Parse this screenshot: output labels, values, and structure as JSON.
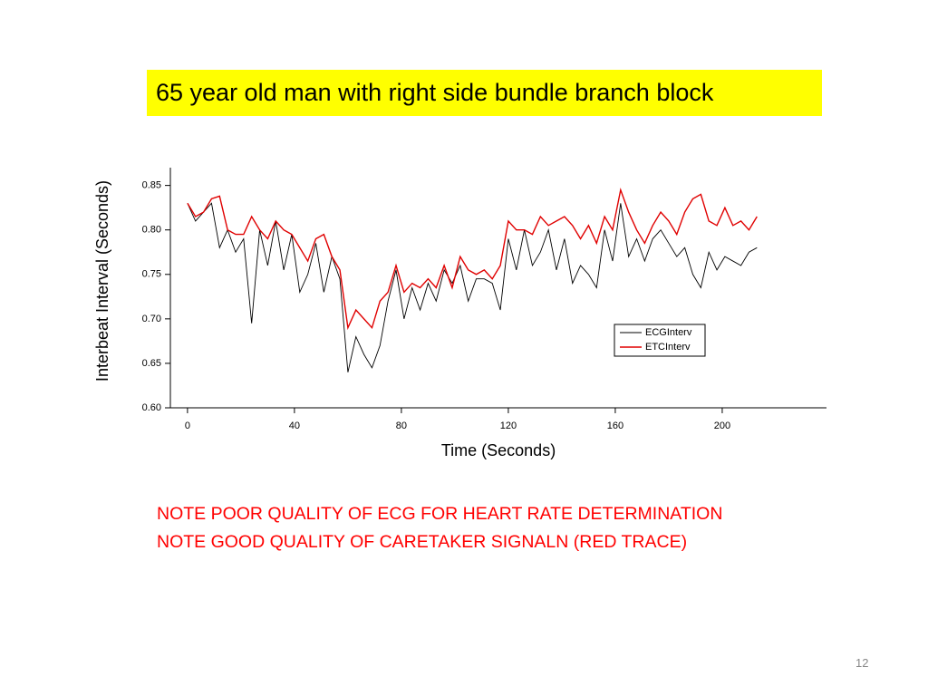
{
  "title": "65 year old man with right side bundle branch block",
  "notes": [
    "NOTE POOR QUALITY OF ECG FOR HEART RATE DETERMINATION",
    "NOTE GOOD QUALITY OF CARETAKER SIGNALN (RED TRACE)"
  ],
  "page_number": "12",
  "chart_data": {
    "type": "line",
    "x_label": "Time (Seconds)",
    "y_label": "Interbeat Interval (Seconds)",
    "xlim": [
      -6.4,
      239
    ],
    "ylim": [
      0.6,
      0.87
    ],
    "xticks": [
      0,
      40,
      80,
      120,
      160,
      200
    ],
    "yticks": [
      {
        "value": 0.6,
        "label": "0.60"
      },
      0.65,
      {
        "value": 0.7,
        "label": "0.70"
      },
      0.75,
      {
        "value": 0.8,
        "label": "0.80"
      },
      0.85
    ],
    "legend_position": "right",
    "x": [
      0,
      3,
      6,
      9,
      12,
      15,
      18,
      21,
      24,
      27,
      30,
      33,
      36,
      39,
      42,
      45,
      48,
      51,
      54,
      57,
      60,
      63,
      66,
      69,
      72,
      75,
      78,
      81,
      84,
      87,
      90,
      93,
      96,
      99,
      102,
      105,
      108,
      111,
      114,
      117,
      120,
      123,
      126,
      129,
      132,
      135,
      138,
      141,
      144,
      147,
      150,
      153,
      156,
      159,
      162,
      165,
      168,
      171,
      174,
      177,
      180,
      183,
      186,
      189,
      192,
      195,
      198,
      201,
      204,
      207,
      210,
      213
    ],
    "series": [
      {
        "name": "ECGInterv",
        "color": "#000000",
        "values": [
          0.83,
          0.81,
          0.82,
          0.83,
          0.78,
          0.8,
          0.775,
          0.79,
          0.695,
          0.8,
          0.76,
          0.81,
          0.755,
          0.795,
          0.73,
          0.75,
          0.785,
          0.73,
          0.77,
          0.745,
          0.64,
          0.68,
          0.66,
          0.645,
          0.67,
          0.72,
          0.755,
          0.7,
          0.735,
          0.71,
          0.74,
          0.72,
          0.755,
          0.74,
          0.76,
          0.72,
          0.745,
          0.745,
          0.74,
          0.71,
          0.79,
          0.755,
          0.8,
          0.76,
          0.775,
          0.8,
          0.755,
          0.79,
          0.74,
          0.76,
          0.75,
          0.735,
          0.8,
          0.765,
          0.83,
          0.77,
          0.79,
          0.765,
          0.79,
          0.8,
          0.785,
          0.77,
          0.78,
          0.75,
          0.735,
          0.775,
          0.755,
          0.77,
          0.765,
          0.76,
          0.775,
          0.78
        ]
      },
      {
        "name": "ETCInterv",
        "color": "#e00000",
        "values": [
          0.83,
          0.815,
          0.82,
          0.835,
          0.838,
          0.8,
          0.795,
          0.795,
          0.815,
          0.8,
          0.79,
          0.81,
          0.8,
          0.795,
          0.78,
          0.765,
          0.79,
          0.795,
          0.77,
          0.755,
          0.69,
          0.71,
          0.7,
          0.69,
          0.72,
          0.73,
          0.76,
          0.73,
          0.74,
          0.735,
          0.745,
          0.735,
          0.76,
          0.735,
          0.77,
          0.755,
          0.75,
          0.755,
          0.745,
          0.76,
          0.81,
          0.8,
          0.8,
          0.795,
          0.815,
          0.805,
          0.81,
          0.815,
          0.805,
          0.79,
          0.805,
          0.785,
          0.815,
          0.8,
          0.845,
          0.82,
          0.8,
          0.785,
          0.805,
          0.82,
          0.81,
          0.795,
          0.82,
          0.835,
          0.84,
          0.81,
          0.805,
          0.825,
          0.805,
          0.81,
          0.8,
          0.815
        ]
      }
    ]
  }
}
